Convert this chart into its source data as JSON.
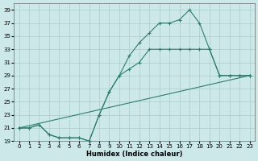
{
  "xlabel": "Humidex (Indice chaleur)",
  "background_color": "#cce8e8",
  "grid_color": "#aacccc",
  "line_color": "#2d7d6e",
  "xlim": [
    0,
    23
  ],
  "ylim": [
    19,
    40
  ],
  "xticks": [
    0,
    1,
    2,
    3,
    4,
    5,
    6,
    7,
    8,
    9,
    10,
    11,
    12,
    13,
    14,
    15,
    16,
    17,
    18,
    19,
    20,
    21,
    22,
    23
  ],
  "yticks": [
    19,
    21,
    23,
    25,
    27,
    29,
    31,
    33,
    35,
    37,
    39
  ],
  "series": [
    {
      "x": [
        0,
        1,
        2,
        3,
        4,
        5,
        6,
        7,
        8,
        9,
        10,
        11,
        12,
        13,
        14,
        15,
        16,
        17,
        18,
        19,
        20,
        21,
        22,
        23
      ],
      "y": [
        21,
        21,
        21.5,
        20,
        19.5,
        19.5,
        19.5,
        19,
        23,
        26.5,
        29,
        32,
        34,
        35.5,
        37,
        37,
        37.5,
        39,
        37,
        33,
        29,
        29,
        29,
        29
      ]
    },
    {
      "x": [
        0,
        1,
        2,
        3,
        4,
        5,
        6,
        7,
        8,
        9,
        10,
        11,
        12,
        13,
        14,
        15,
        16,
        17,
        18,
        19,
        20,
        21,
        22,
        23
      ],
      "y": [
        21,
        21,
        21.5,
        20,
        19.5,
        19.5,
        19.5,
        19,
        23,
        26.5,
        29,
        30,
        31,
        33,
        33,
        33,
        33,
        33,
        33,
        33,
        29,
        29,
        29,
        29
      ]
    },
    {
      "x": [
        0,
        23
      ],
      "y": [
        21,
        29
      ]
    }
  ]
}
